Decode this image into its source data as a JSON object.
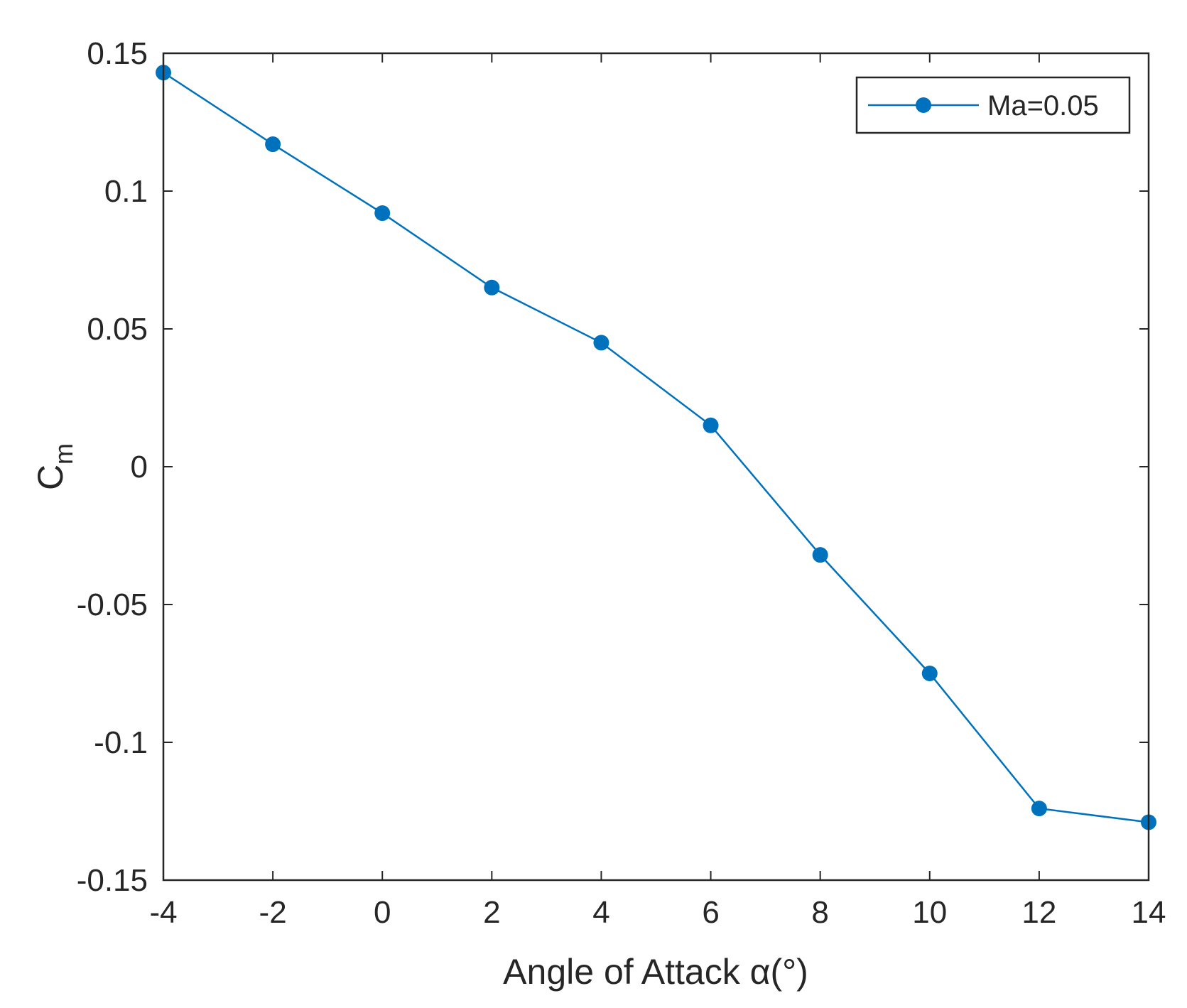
{
  "chart_data": {
    "type": "line",
    "xlabel": "Angle of Attack α(°)",
    "ylabel": "C",
    "ylabel_sub": "m",
    "xlim": [
      -4,
      14
    ],
    "ylim": [
      -0.15,
      0.15
    ],
    "xticks": [
      -4,
      -2,
      0,
      2,
      4,
      6,
      8,
      10,
      12,
      14
    ],
    "xtick_labels": [
      "-4",
      "-2",
      "0",
      "2",
      "4",
      "6",
      "8",
      "10",
      "12",
      "14"
    ],
    "yticks": [
      -0.15,
      -0.1,
      -0.05,
      0,
      0.05,
      0.1,
      0.15
    ],
    "ytick_labels": [
      "-0.15",
      "-0.1",
      "-0.05",
      "0",
      "0.05",
      "0.1",
      "0.15"
    ],
    "grid": false,
    "legend_position": "top-right",
    "series": [
      {
        "name": "Ma=0.05",
        "color": "#0072bd",
        "marker": "circle",
        "x": [
          -4,
          -2,
          0,
          2,
          4,
          6,
          8,
          10,
          12,
          14
        ],
        "y": [
          0.143,
          0.117,
          0.092,
          0.065,
          0.045,
          0.015,
          -0.032,
          -0.075,
          -0.124,
          -0.129
        ]
      }
    ]
  }
}
